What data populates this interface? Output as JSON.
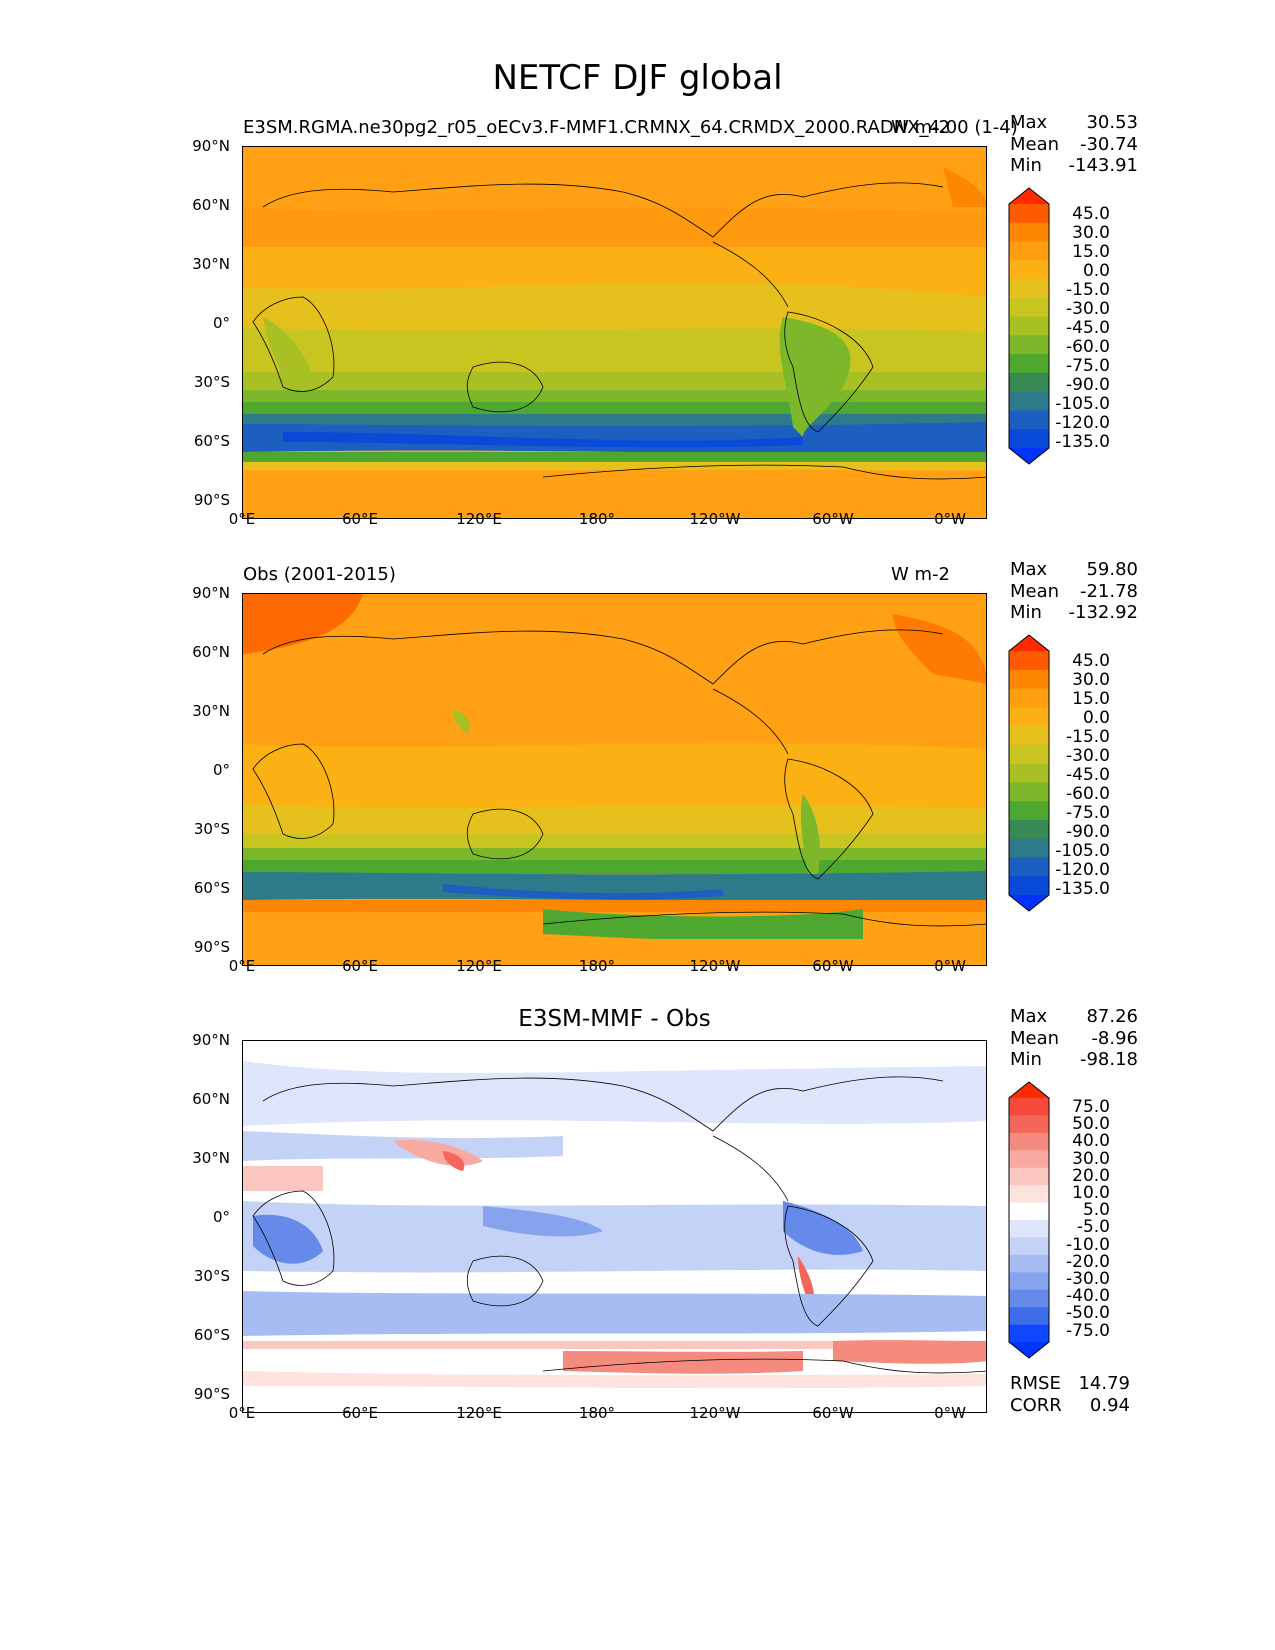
{
  "figure_title": "NETCF DJF global",
  "x_ticks": [
    "0°E",
    "60°E",
    "120°E",
    "180°",
    "120°W",
    "60°W",
    "0°W"
  ],
  "y_ticks": [
    "90°N",
    "60°N",
    "30°N",
    "0°",
    "30°S",
    "60°S",
    "90°S"
  ],
  "panels": [
    {
      "id": "model",
      "left_title": "E3SM.RGMA.ne30pg2_r05_oECv3.F-MMF1.CRMNX_64.CRMDX_2000.RADNX_4.00 (1-4)",
      "right_title": "W m-2",
      "center_title": "",
      "stats": [
        {
          "label": "Max",
          "value": "30.53"
        },
        {
          "label": "Mean",
          "value": "-30.74"
        },
        {
          "label": "Min",
          "value": "-143.91"
        }
      ],
      "colorbar_labels": [
        "45.0",
        "30.0",
        "15.0",
        "0.0",
        "-15.0",
        "-30.0",
        "-45.0",
        "-60.0",
        "-75.0",
        "-90.0",
        "-105.0",
        "-120.0",
        "-135.0"
      ],
      "colorbar_colors": [
        "#ff2a00",
        "#ff5a00",
        "#ff8600",
        "#ff9e10",
        "#fbb014",
        "#e6c01c",
        "#c8c420",
        "#a8c023",
        "#7cb829",
        "#4ea72f",
        "#388a55",
        "#2d7a8a",
        "#1c5fc0",
        "#0a4ad8",
        "#0033ff"
      ]
    },
    {
      "id": "obs",
      "left_title": "Obs (2001-2015)",
      "right_title": "W m-2",
      "center_title": "",
      "stats": [
        {
          "label": "Max",
          "value": "59.80"
        },
        {
          "label": "Mean",
          "value": "-21.78"
        },
        {
          "label": "Min",
          "value": "-132.92"
        }
      ],
      "colorbar_labels": [
        "45.0",
        "30.0",
        "15.0",
        "0.0",
        "-15.0",
        "-30.0",
        "-45.0",
        "-60.0",
        "-75.0",
        "-90.0",
        "-105.0",
        "-120.0",
        "-135.0"
      ],
      "colorbar_colors": [
        "#ff2a00",
        "#ff5a00",
        "#ff8600",
        "#ff9e10",
        "#fbb014",
        "#e6c01c",
        "#c8c420",
        "#a8c023",
        "#7cb829",
        "#4ea72f",
        "#388a55",
        "#2d7a8a",
        "#1c5fc0",
        "#0a4ad8",
        "#0033ff"
      ]
    },
    {
      "id": "diff",
      "left_title": "",
      "right_title": "",
      "center_title": "E3SM-MMF - Obs",
      "stats": [
        {
          "label": "Max",
          "value": "87.26"
        },
        {
          "label": "Mean",
          "value": "-8.96"
        },
        {
          "label": "Min",
          "value": "-98.18"
        }
      ],
      "colorbar_labels": [
        "75.0",
        "50.0",
        "40.0",
        "30.0",
        "20.0",
        "10.0",
        "5.0",
        "-5.0",
        "-10.0",
        "-20.0",
        "-30.0",
        "-40.0",
        "-50.0",
        "-75.0"
      ],
      "colorbar_colors": [
        "#ff2a00",
        "#f54a3a",
        "#f4665a",
        "#f58a7e",
        "#f8aaa0",
        "#fbc6bf",
        "#fde2de",
        "#ffffff",
        "#dfe6fb",
        "#c4d2f8",
        "#a6bcf3",
        "#86a4ee",
        "#658aea",
        "#3f6eeb",
        "#1048ff",
        "#0033ff"
      ],
      "extra_stats": [
        {
          "label": "RMSE",
          "value": "14.79"
        },
        {
          "label": "CORR",
          "value": "0.94"
        }
      ]
    }
  ]
}
